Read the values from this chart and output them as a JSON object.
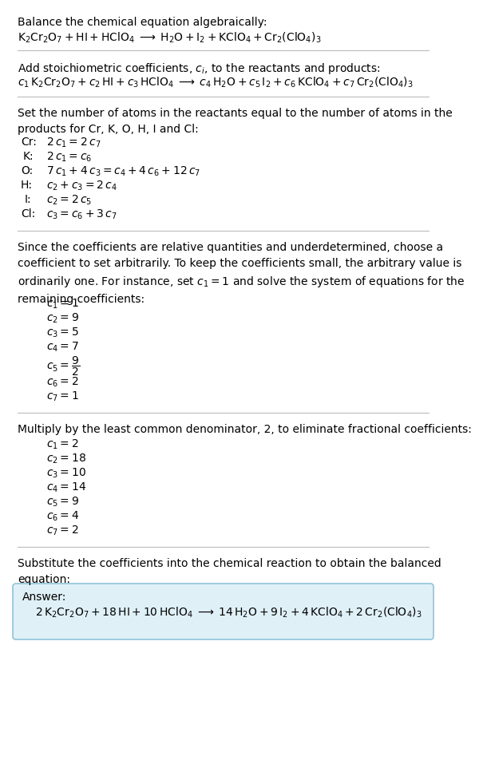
{
  "title_text": "Balance the chemical equation algebraically:",
  "eq1": "$\\mathrm{K_2Cr_2O_7 + HI + HClO_4 \\;\\longrightarrow\\; H_2O + I_2 + KClO_4 + Cr_2(ClO_4)_3}$",
  "section2_title": "Add stoichiometric coefficients, $c_i$, to the reactants and products:",
  "eq2": "$c_1\\,\\mathrm{K_2Cr_2O_7} + c_2\\,\\mathrm{HI} + c_3\\,\\mathrm{HClO_4} \\;\\longrightarrow\\; c_4\\,\\mathrm{H_2O} + c_5\\,\\mathrm{I_2} + c_6\\,\\mathrm{KClO_4} + c_7\\,\\mathrm{Cr_2(ClO_4)_3}$",
  "section3_title": "Set the number of atoms in the reactants equal to the number of atoms in the\nproducts for Cr, K, O, H, I and Cl:",
  "atom_equations": [
    [
      "Cr:",
      "$2\\,c_1 = 2\\,c_7$"
    ],
    [
      "K:",
      "$2\\,c_1 = c_6$"
    ],
    [
      "O:",
      "$7\\,c_1 + 4\\,c_3 = c_4 + 4\\,c_6 + 12\\,c_7$"
    ],
    [
      "H:",
      "$c_2 + c_3 = 2\\,c_4$"
    ],
    [
      "I:",
      "$c_2 = 2\\,c_5$"
    ],
    [
      "Cl:",
      "$c_3 = c_6 + 3\\,c_7$"
    ]
  ],
  "section4_title": "Since the coefficients are relative quantities and underdetermined, choose a\ncoefficient to set arbitrarily. To keep the coefficients small, the arbitrary value is\nordinarily one. For instance, set $c_1 = 1$ and solve the system of equations for the\nremaining coefficients:",
  "coeff1": [
    "$c_1 = 1$",
    "$c_2 = 9$",
    "$c_3 = 5$",
    "$c_4 = 7$",
    "$c_5 = \\dfrac{9}{2}$",
    "$c_6 = 2$",
    "$c_7 = 1$"
  ],
  "section5_title": "Multiply by the least common denominator, 2, to eliminate fractional coefficients:",
  "coeff2": [
    "$c_1 = 2$",
    "$c_2 = 18$",
    "$c_3 = 10$",
    "$c_4 = 14$",
    "$c_5 = 9$",
    "$c_6 = 4$",
    "$c_7 = 2$"
  ],
  "section6_title": "Substitute the coefficients into the chemical reaction to obtain the balanced\nequation:",
  "answer_label": "Answer:",
  "answer_eq": "$2\\,\\mathrm{K_2Cr_2O_7} + 18\\,\\mathrm{HI} + 10\\,\\mathrm{HClO_4} \\;\\longrightarrow\\; 14\\,\\mathrm{H_2O} + 9\\,\\mathrm{I_2} + 4\\,\\mathrm{KClO_4} + 2\\,\\mathrm{Cr_2(ClO_4)_3}$",
  "bg_color": "#ffffff",
  "text_color": "#000000",
  "answer_box_facecolor": "#dff0f7",
  "answer_box_edgecolor": "#90c4d8",
  "line_color": "#bbbbbb",
  "font_size": 10.0
}
